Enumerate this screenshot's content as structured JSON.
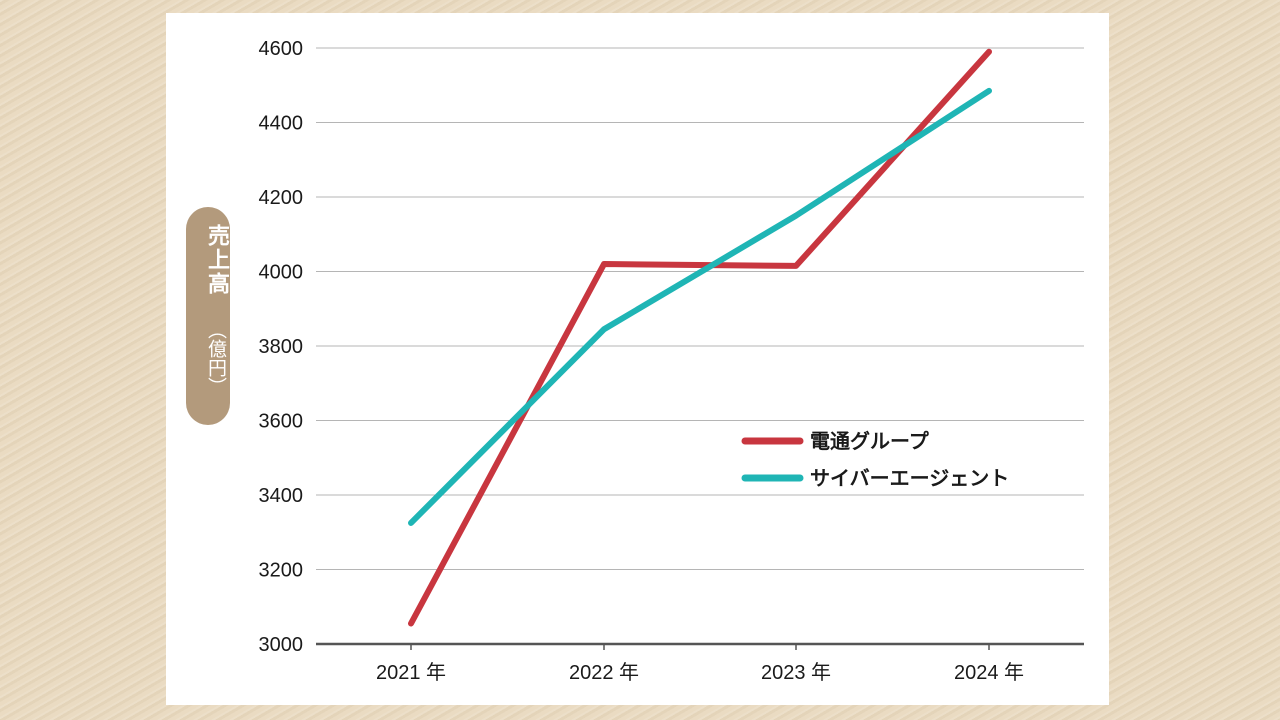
{
  "chart_data": {
    "type": "line",
    "title": "",
    "xlabel": "",
    "ylabel": "売上高",
    "ylabel_unit": "（億円）",
    "categories": [
      "2021 年",
      "2022 年",
      "2023 年",
      "2024 年"
    ],
    "ylim": [
      3000,
      4600
    ],
    "yticks": [
      "3000",
      "3200",
      "3400",
      "3600",
      "3800",
      "4000",
      "4200",
      "4400",
      "4600"
    ],
    "grid": true,
    "legend_position": "center-right",
    "series": [
      {
        "name": "電通グループ",
        "values": [
          3055,
          4020,
          4015,
          4590
        ],
        "color": "#c8363f"
      },
      {
        "name": "サイバーエージェント",
        "values": [
          3325,
          3845,
          4150,
          4485
        ],
        "color": "#1fb5b5"
      }
    ]
  }
}
